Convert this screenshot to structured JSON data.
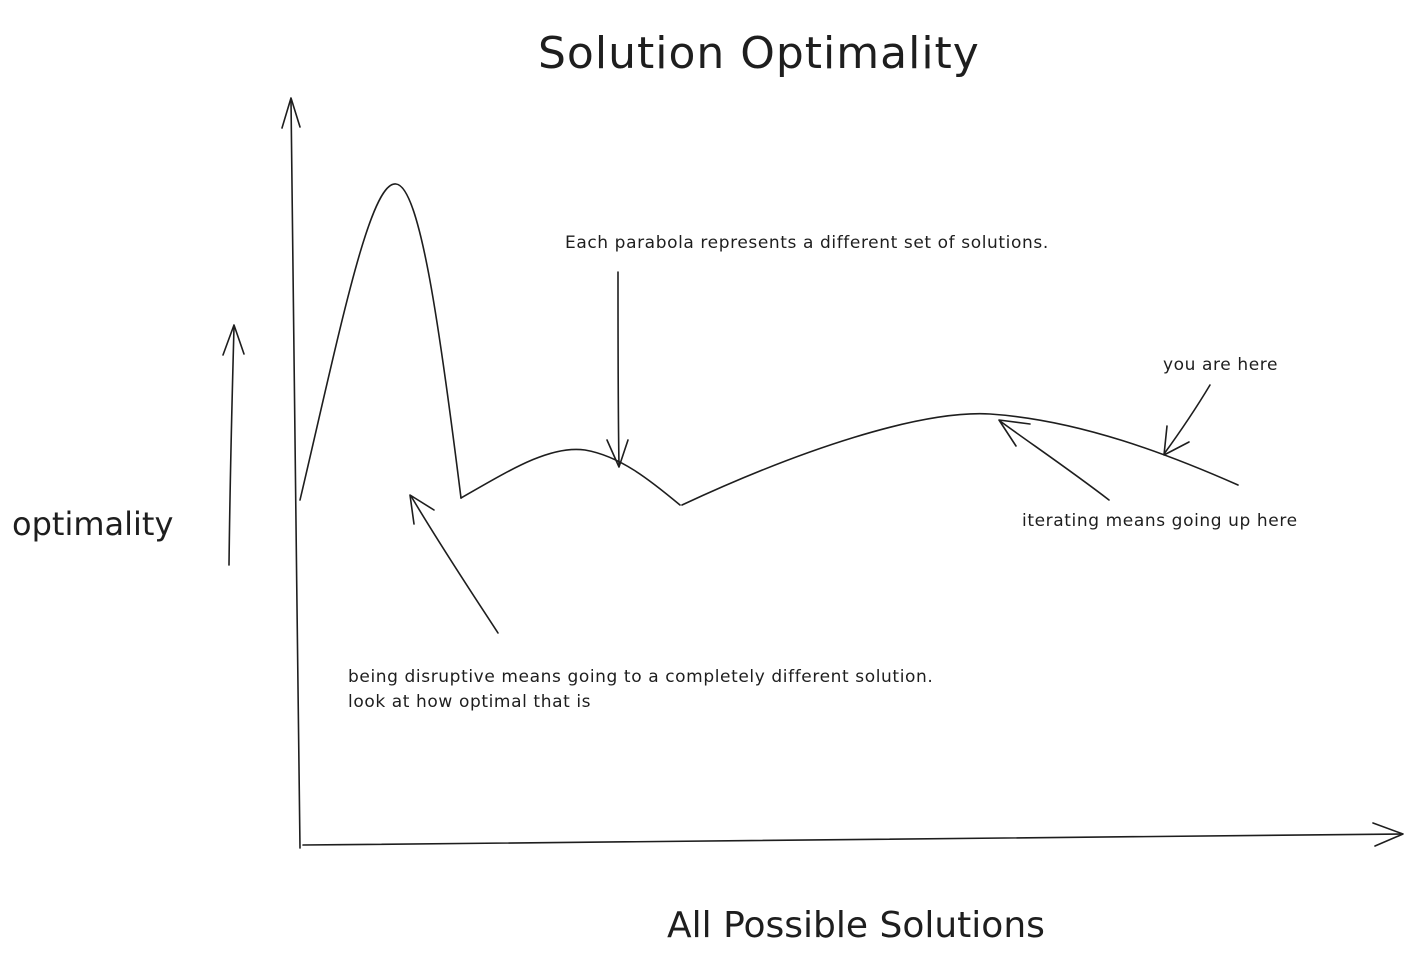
{
  "title": "Solution Optimality",
  "y_axis_label": "optimality",
  "x_axis_label": "All Possible Solutions",
  "annotations": {
    "parabola_note": "Each parabola represents a different set of solutions.",
    "you_are_here": "you are here",
    "iterating": "iterating means going up here",
    "disruptive_line1": "being disruptive means going to a completely different solution.",
    "disruptive_line2": "look at how optimal that is"
  },
  "stroke_color": "#1e1e1e",
  "background_color": "#ffffff"
}
